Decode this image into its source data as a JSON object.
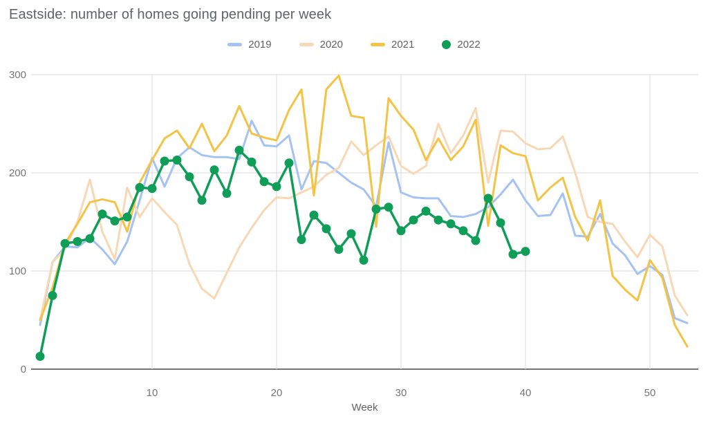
{
  "chart_data": {
    "type": "line",
    "title": "Eastside: number of homes going pending per week",
    "xlabel": "Week",
    "x_ticks": [
      10,
      20,
      30,
      40,
      50
    ],
    "y_ticks": [
      0,
      100,
      200,
      300
    ],
    "ylim": [
      0,
      300
    ],
    "xlim": [
      1,
      53
    ],
    "grid_on": true,
    "legend_position": "top-center",
    "colors": {
      "grid": "#d9d9d9",
      "axis_line": "#757575",
      "tick_label": "#757575",
      "title_text": "#5f6368"
    },
    "weeks_start": 1,
    "series": [
      {
        "name": "2019",
        "color": "#a4c2f4",
        "marker": false,
        "values": [
          45,
          109,
          125,
          124,
          134,
          122,
          107,
          130,
          172,
          215,
          186,
          215,
          226,
          218,
          216,
          216,
          214,
          253,
          228,
          227,
          238,
          183,
          212,
          210,
          200,
          190,
          183,
          166,
          231,
          180,
          175,
          174,
          174,
          156,
          155,
          158,
          165,
          178,
          193,
          172,
          156,
          157,
          179,
          136,
          135,
          158,
          128,
          116,
          97,
          105,
          96,
          52,
          47
        ]
      },
      {
        "name": "2020",
        "color": "#f8d8b4",
        "marker": false,
        "values": [
          50,
          109,
          122,
          150,
          193,
          140,
          112,
          185,
          155,
          174,
          160,
          147,
          107,
          82,
          72,
          98,
          124,
          144,
          162,
          175,
          174,
          180,
          186,
          198,
          205,
          232,
          218,
          228,
          237,
          207,
          199,
          207,
          250,
          220,
          238,
          266,
          190,
          243,
          242,
          230,
          224,
          225,
          237,
          200,
          155,
          150,
          148,
          130,
          114,
          137,
          125,
          75,
          55
        ]
      },
      {
        "name": "2021",
        "color": "#f5c343",
        "marker": false,
        "values": [
          50,
          83,
          128,
          148,
          170,
          173,
          170,
          140,
          190,
          213,
          235,
          243,
          225,
          250,
          222,
          238,
          268,
          240,
          236,
          233,
          264,
          285,
          177,
          285,
          299,
          258,
          256,
          145,
          276,
          258,
          244,
          213,
          235,
          213,
          227,
          254,
          146,
          228,
          220,
          217,
          172,
          185,
          195,
          155,
          131,
          172,
          95,
          81,
          70,
          111,
          93,
          45,
          23
        ]
      },
      {
        "name": "2022",
        "color": "#0f9d58",
        "marker": true,
        "values": [
          13,
          75,
          128,
          130,
          133,
          158,
          151,
          155,
          185,
          184,
          212,
          213,
          196,
          172,
          203,
          179,
          223,
          211,
          191,
          186,
          210,
          132,
          157,
          143,
          122,
          138,
          111,
          163,
          165,
          141,
          152,
          161,
          152,
          148,
          141,
          131,
          174,
          149,
          117,
          120
        ]
      }
    ]
  }
}
